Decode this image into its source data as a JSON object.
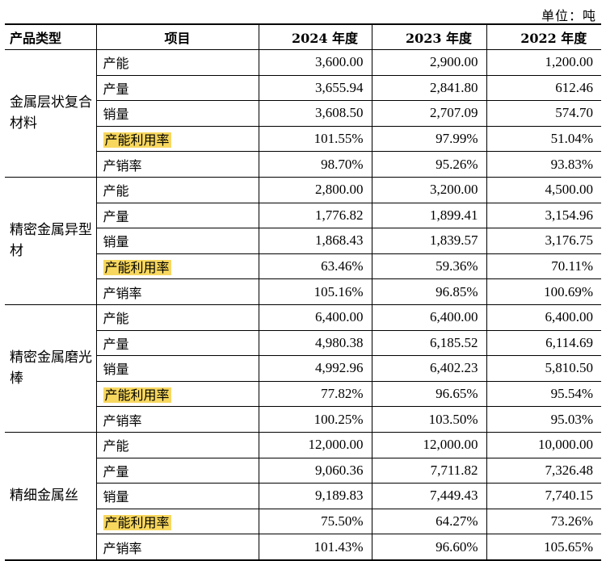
{
  "unit_label": "单位：吨",
  "header": {
    "type": "产品类型",
    "item": "项目",
    "years": [
      "2024 年度",
      "2023 年度",
      "2022 年度"
    ]
  },
  "groups": [
    {
      "category": "金属层状复合材料",
      "rows": [
        {
          "item": "产能",
          "highlight": false,
          "values": [
            "3,600.00",
            "2,900.00",
            "1,200.00"
          ]
        },
        {
          "item": "产量",
          "highlight": false,
          "values": [
            "3,655.94",
            "2,841.80",
            "612.46"
          ]
        },
        {
          "item": "销量",
          "highlight": false,
          "values": [
            "3,608.50",
            "2,707.09",
            "574.70"
          ]
        },
        {
          "item": "产能利用率",
          "highlight": true,
          "values": [
            "101.55%",
            "97.99%",
            "51.04%"
          ]
        },
        {
          "item": "产销率",
          "highlight": false,
          "values": [
            "98.70%",
            "95.26%",
            "93.83%"
          ]
        }
      ]
    },
    {
      "category": "精密金属异型材",
      "rows": [
        {
          "item": "产能",
          "highlight": false,
          "values": [
            "2,800.00",
            "3,200.00",
            "4,500.00"
          ]
        },
        {
          "item": "产量",
          "highlight": false,
          "values": [
            "1,776.82",
            "1,899.41",
            "3,154.96"
          ]
        },
        {
          "item": "销量",
          "highlight": false,
          "values": [
            "1,868.43",
            "1,839.57",
            "3,176.75"
          ]
        },
        {
          "item": "产能利用率",
          "highlight": true,
          "values": [
            "63.46%",
            "59.36%",
            "70.11%"
          ]
        },
        {
          "item": "产销率",
          "highlight": false,
          "values": [
            "105.16%",
            "96.85%",
            "100.69%"
          ]
        }
      ]
    },
    {
      "category": "精密金属磨光棒",
      "rows": [
        {
          "item": "产能",
          "highlight": false,
          "values": [
            "6,400.00",
            "6,400.00",
            "6,400.00"
          ]
        },
        {
          "item": "产量",
          "highlight": false,
          "values": [
            "4,980.38",
            "6,185.52",
            "6,114.69"
          ]
        },
        {
          "item": "销量",
          "highlight": false,
          "values": [
            "4,992.96",
            "6,402.23",
            "5,810.50"
          ]
        },
        {
          "item": "产能利用率",
          "highlight": true,
          "values": [
            "77.82%",
            "96.65%",
            "95.54%"
          ]
        },
        {
          "item": "产销率",
          "highlight": false,
          "values": [
            "100.25%",
            "103.50%",
            "95.03%"
          ]
        }
      ]
    },
    {
      "category": "精细金属丝",
      "rows": [
        {
          "item": "产能",
          "highlight": false,
          "values": [
            "12,000.00",
            "12,000.00",
            "10,000.00"
          ]
        },
        {
          "item": "产量",
          "highlight": false,
          "values": [
            "9,060.36",
            "7,711.82",
            "7,326.48"
          ]
        },
        {
          "item": "销量",
          "highlight": false,
          "values": [
            "9,189.83",
            "7,449.43",
            "7,740.15"
          ]
        },
        {
          "item": "产能利用率",
          "highlight": true,
          "values": [
            "75.50%",
            "64.27%",
            "73.26%"
          ]
        },
        {
          "item": "产销率",
          "highlight": false,
          "values": [
            "101.43%",
            "96.60%",
            "105.65%"
          ]
        }
      ]
    }
  ],
  "highlight_color": "#f7d75e"
}
